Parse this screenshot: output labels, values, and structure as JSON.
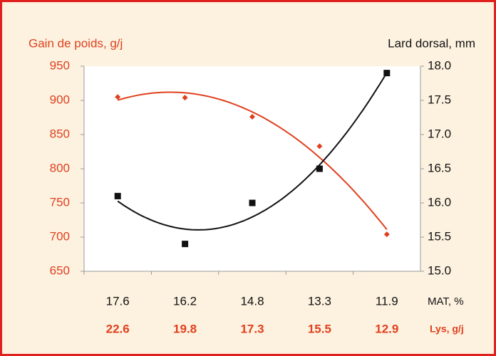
{
  "chart_data": {
    "type": "line",
    "title_left": "Gain de poids, g/j",
    "title_right": "Lard dorsal, mm",
    "categories": [
      "17.6",
      "16.2",
      "14.8",
      "13.3",
      "11.9"
    ],
    "categories2": [
      "22.6",
      "19.8",
      "17.3",
      "15.5",
      "12.9"
    ],
    "xlabel": "MAT, %",
    "xlabel2": "Lys, g/j",
    "series": [
      {
        "name": "Gain de poids, g/j",
        "color": "#e0401e",
        "marker": "diamond",
        "values": [
          905,
          904,
          876,
          833,
          704
        ]
      },
      {
        "name": "Lard dorsal, mm",
        "color": "#111111",
        "marker": "square",
        "axis": "y2",
        "values": [
          16.1,
          15.4,
          16.0,
          16.5,
          17.9
        ]
      }
    ],
    "trendline": "polynomial",
    "trendline_order": 2,
    "ylim": [
      650,
      950
    ],
    "yticks": [
      650,
      700,
      750,
      800,
      850,
      900,
      950
    ],
    "y2lim": [
      15,
      18
    ],
    "y2ticks": [
      {
        "value": 15,
        "label": "15.0"
      },
      15.5,
      {
        "value": 16,
        "label": "16.0"
      },
      16.5,
      {
        "value": 17,
        "label": "17.0"
      },
      17.5,
      {
        "value": 18,
        "label": "18.0"
      }
    ],
    "left_axis_color": "#e0401e",
    "right_axis_color": "#111111"
  }
}
